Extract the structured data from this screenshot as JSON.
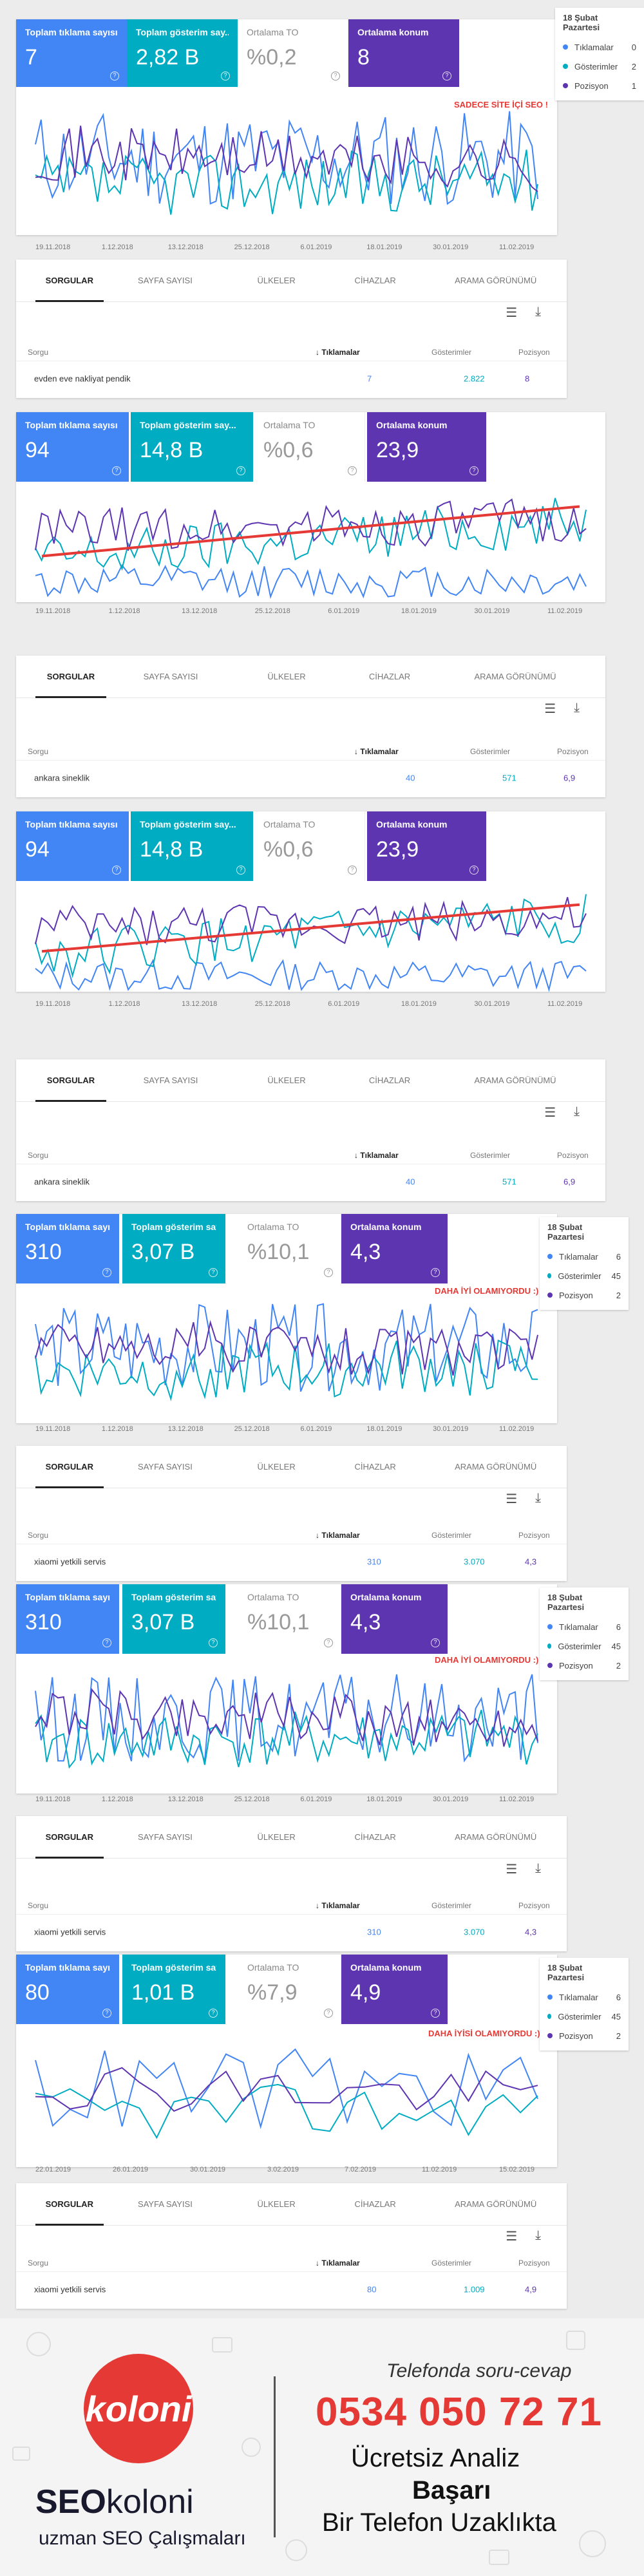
{
  "colors": {
    "clicks": "#4285f4",
    "impressions": "#00acc1",
    "ctr": "#ffffff",
    "position": "#5e35b1",
    "trend": "#e53935",
    "note": "#e53935"
  },
  "cards_labels": [
    "Toplam tıklama sayısı",
    "Toplam gösterim say...",
    "Ortalama TO",
    "Ortalama konum"
  ],
  "tabs": [
    "SORGULAR",
    "SAYFA SAYISI",
    "ÜLKELER",
    "CİHAZLAR",
    "ARAMA GÖRÜNÜMÜ"
  ],
  "table_headers": [
    "Sorgu",
    "Tıklamalar",
    "Gösterimler",
    "Pozisyon"
  ],
  "tools": {
    "filter_icon": "filter-icon",
    "download_icon": "download-icon"
  },
  "sections": [
    {
      "cards": [
        "7",
        "2,82 B",
        "%0,2",
        "8"
      ],
      "note": "SADECE SİTE İÇİ SEO !",
      "legend": {
        "title": "18 Şubat Pazartesi",
        "rows": [
          {
            "name": "Tıklamalar",
            "value": "0"
          },
          {
            "name": "Gösterimler",
            "value": "2"
          },
          {
            "name": "Pozisyon",
            "value": "1"
          }
        ]
      },
      "x_ticks": [
        "19.11.2018",
        "1.12.2018",
        "13.12.2018",
        "25.12.2018",
        "6.01.2019",
        "18.01.2019",
        "30.01.2019",
        "11.02.2019"
      ],
      "trend": false,
      "table": {
        "query": "evden eve nakliyat pendik",
        "clicks": "7",
        "impressions": "2.822",
        "position": "8"
      }
    },
    {
      "cards": [
        "94",
        "14,8 B",
        "%0,6",
        "23,9"
      ],
      "note": "",
      "legend": null,
      "x_ticks": [
        "19.11.2018",
        "1.12.2018",
        "13.12.2018",
        "25.12.2018",
        "6.01.2019",
        "18.01.2019",
        "30.01.2019",
        "11.02.2019"
      ],
      "trend": true,
      "table": {
        "query": "ankara sineklik",
        "clicks": "40",
        "impressions": "571",
        "position": "6,9"
      }
    },
    {
      "cards": [
        "94",
        "14,8 B",
        "%0,6",
        "23,9"
      ],
      "note": "",
      "legend": null,
      "x_ticks": [
        "19.11.2018",
        "1.12.2018",
        "13.12.2018",
        "25.12.2018",
        "6.01.2019",
        "18.01.2019",
        "30.01.2019",
        "11.02.2019"
      ],
      "trend": true,
      "table": {
        "query": "ankara sineklik",
        "clicks": "40",
        "impressions": "571",
        "position": "6,9"
      }
    },
    {
      "cards": [
        "310",
        "3,07 B",
        "%10,1",
        "4,3"
      ],
      "note": "DAHA İYİ OLAMIYORDU :)",
      "legend": {
        "title": "18 Şubat Pazartesi",
        "rows": [
          {
            "name": "Tıklamalar",
            "value": "6"
          },
          {
            "name": "Gösterimler",
            "value": "45"
          },
          {
            "name": "Pozisyon",
            "value": "2"
          }
        ]
      },
      "x_ticks": [
        "19.11.2018",
        "1.12.2018",
        "13.12.2018",
        "25.12.2018",
        "6.01.2019",
        "18.01.2019",
        "30.01.2019",
        "11.02.2019"
      ],
      "trend": false,
      "table": {
        "query": "xiaomi yetkili servis",
        "clicks": "310",
        "impressions": "3.070",
        "position": "4,3"
      }
    },
    {
      "cards": [
        "310",
        "3,07 B",
        "%10,1",
        "4,3"
      ],
      "note": "DAHA İYİ OLAMIYORDU :)",
      "legend": {
        "title": "18 Şubat Pazartesi",
        "rows": [
          {
            "name": "Tıklamalar",
            "value": "6"
          },
          {
            "name": "Gösterimler",
            "value": "45"
          },
          {
            "name": "Pozisyon",
            "value": "2"
          }
        ]
      },
      "x_ticks": [
        "19.11.2018",
        "1.12.2018",
        "13.12.2018",
        "25.12.2018",
        "6.01.2019",
        "18.01.2019",
        "30.01.2019",
        "11.02.2019"
      ],
      "trend": false,
      "table": {
        "query": "xiaomi yetkili servis",
        "clicks": "310",
        "impressions": "3.070",
        "position": "4,3"
      }
    },
    {
      "cards": [
        "80",
        "1,01 B",
        "%7,9",
        "4,9"
      ],
      "note": "DAHA İYİSİ OLAMIYORDU :)",
      "legend": {
        "title": "18 Şubat Pazartesi",
        "rows": [
          {
            "name": "Tıklamalar",
            "value": "6"
          },
          {
            "name": "Gösterimler",
            "value": "45"
          },
          {
            "name": "Pozisyon",
            "value": "2"
          }
        ]
      },
      "x_ticks": [
        "22.01.2019",
        "26.01.2019",
        "30.01.2019",
        "3.02.2019",
        "7.02.2019",
        "11.02.2019",
        "15.02.2019"
      ],
      "trend": false,
      "table": {
        "query": "xiaomi yetkili servis",
        "clicks": "80",
        "impressions": "1.009",
        "position": "4,9"
      }
    }
  ],
  "promo": {
    "logo_text": "koloni",
    "brand_bold": "SEO",
    "brand_thin": "koloni",
    "tagline": "uzman SEO Çalışmaları",
    "phone_label": "Telefonda soru-cevap",
    "phone": "0534 050 72 71",
    "line1": "Ücretsiz Analiz",
    "line2": "Başarı",
    "line3": "Bir Telefon Uzaklıkta"
  }
}
